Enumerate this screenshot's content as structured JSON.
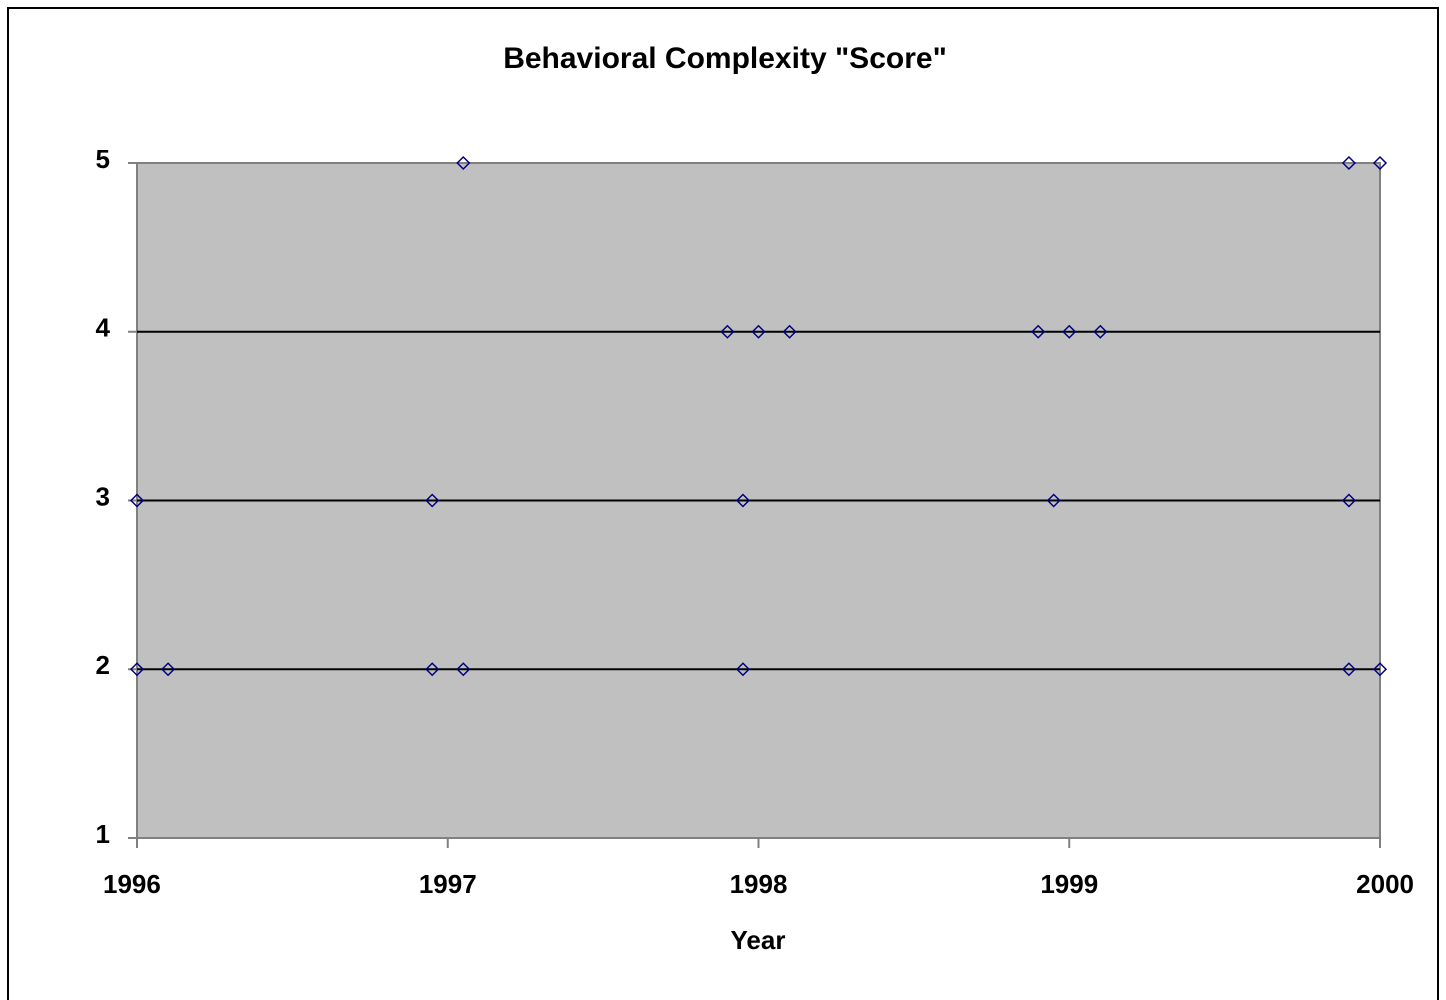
{
  "chart_data": {
    "type": "scatter",
    "title": "Behavioral Complexity \"Score\"",
    "x_label": "Year",
    "series": [
      {
        "color": "#000080",
        "x": [
          1997.05,
          1999.9,
          2000.0,
          1997.9,
          1998.0,
          1998.1,
          1998.9,
          1999.0,
          1999.1,
          1996.0,
          1996.95,
          1997.95,
          1998.95,
          1999.9,
          1996.0,
          1996.1,
          1996.95,
          1997.05,
          1997.95,
          1999.9,
          2000.0
        ],
        "values": [
          5,
          5,
          5,
          4,
          4,
          4,
          4,
          4,
          4,
          3,
          3,
          3,
          3,
          3,
          2,
          2,
          2,
          2,
          2,
          2,
          2
        ]
      }
    ],
    "xlim": [
      1996,
      2000
    ],
    "xticks": [
      1996,
      1997,
      1998,
      1999,
      2000
    ],
    "ylim": [
      1,
      5
    ],
    "yticks": [
      1,
      2,
      3,
      4,
      5
    ],
    "grid": true,
    "plot_background": "#c0c0c0"
  }
}
